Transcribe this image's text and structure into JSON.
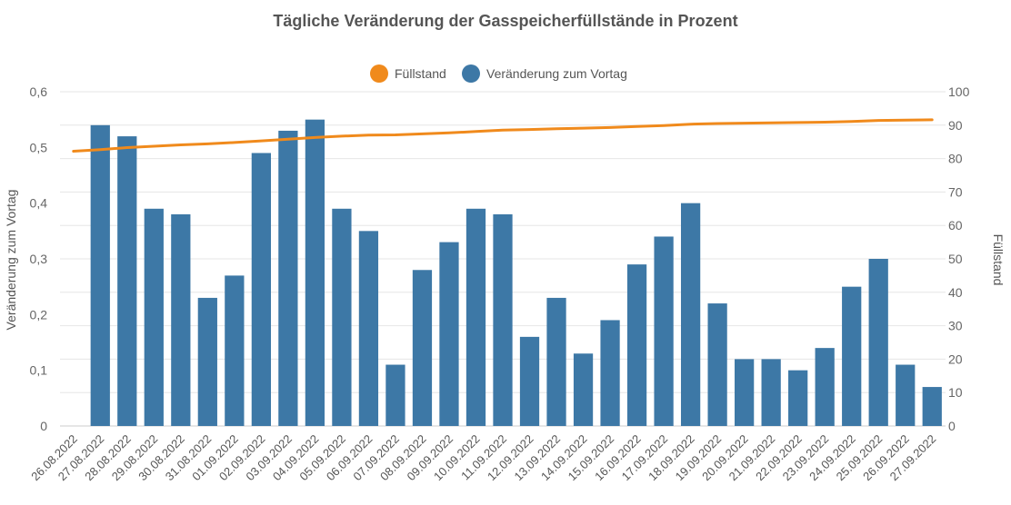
{
  "chart_data": {
    "type": "bar",
    "title": "Tägliche Veränderung der Gasspeicherfüllstände in Prozent",
    "categories": [
      "26.08.2022",
      "27.08.2022",
      "28.08.2022",
      "29.08.2022",
      "30.08.2022",
      "31.08.2022",
      "01.09.2022",
      "02.09.2022",
      "03.09.2022",
      "04.09.2022",
      "05.09.2022",
      "06.09.2022",
      "07.09.2022",
      "08.09.2022",
      "09.09.2022",
      "10.09.2022",
      "11.09.2022",
      "12.09.2022",
      "13.09.2022",
      "14.09.2022",
      "15.09.2022",
      "16.09.2022",
      "17.09.2022",
      "18.09.2022",
      "19.09.2022",
      "20.09.2022",
      "21.09.2022",
      "22.09.2022",
      "23.09.2022",
      "24.09.2022",
      "25.09.2022",
      "26.09.2022",
      "27.09.2022"
    ],
    "y_left_label": "Veränderung zum Vortag",
    "y_right_label": "Füllstand",
    "y_left_ticks": [
      "0",
      "0,1",
      "0,2",
      "0,3",
      "0,4",
      "0,5",
      "0,6"
    ],
    "y_right_ticks": [
      "0",
      "10",
      "20",
      "30",
      "40",
      "50",
      "60",
      "70",
      "80",
      "90",
      "100"
    ],
    "y_left_range": [
      0,
      0.6
    ],
    "y_right_range": [
      0,
      100
    ],
    "grid": true,
    "legend_position": "top-center",
    "series": [
      {
        "name": "Füllstand",
        "type": "line",
        "axis": "right",
        "color": "#f08a1c",
        "values": [
          82.2,
          82.7,
          83.3,
          83.7,
          84.1,
          84.4,
          84.8,
          85.3,
          85.8,
          86.3,
          86.7,
          87.0,
          87.1,
          87.4,
          87.7,
          88.1,
          88.5,
          88.7,
          88.9,
          89.1,
          89.3,
          89.6,
          89.9,
          90.3,
          90.5,
          90.6,
          90.7,
          90.8,
          90.9,
          91.1,
          91.4,
          91.5,
          91.6
        ]
      },
      {
        "name": "Veränderung zum Vortag",
        "type": "bar",
        "axis": "left",
        "color": "#3d78a6",
        "values": [
          null,
          0.54,
          0.52,
          0.39,
          0.38,
          0.23,
          0.27,
          0.49,
          0.53,
          0.55,
          0.39,
          0.35,
          0.11,
          0.28,
          0.33,
          0.39,
          0.38,
          0.16,
          0.23,
          0.13,
          0.19,
          0.29,
          0.34,
          0.4,
          0.22,
          0.12,
          0.12,
          0.1,
          0.14,
          0.25,
          0.3,
          0.11,
          0.07
        ]
      }
    ]
  }
}
